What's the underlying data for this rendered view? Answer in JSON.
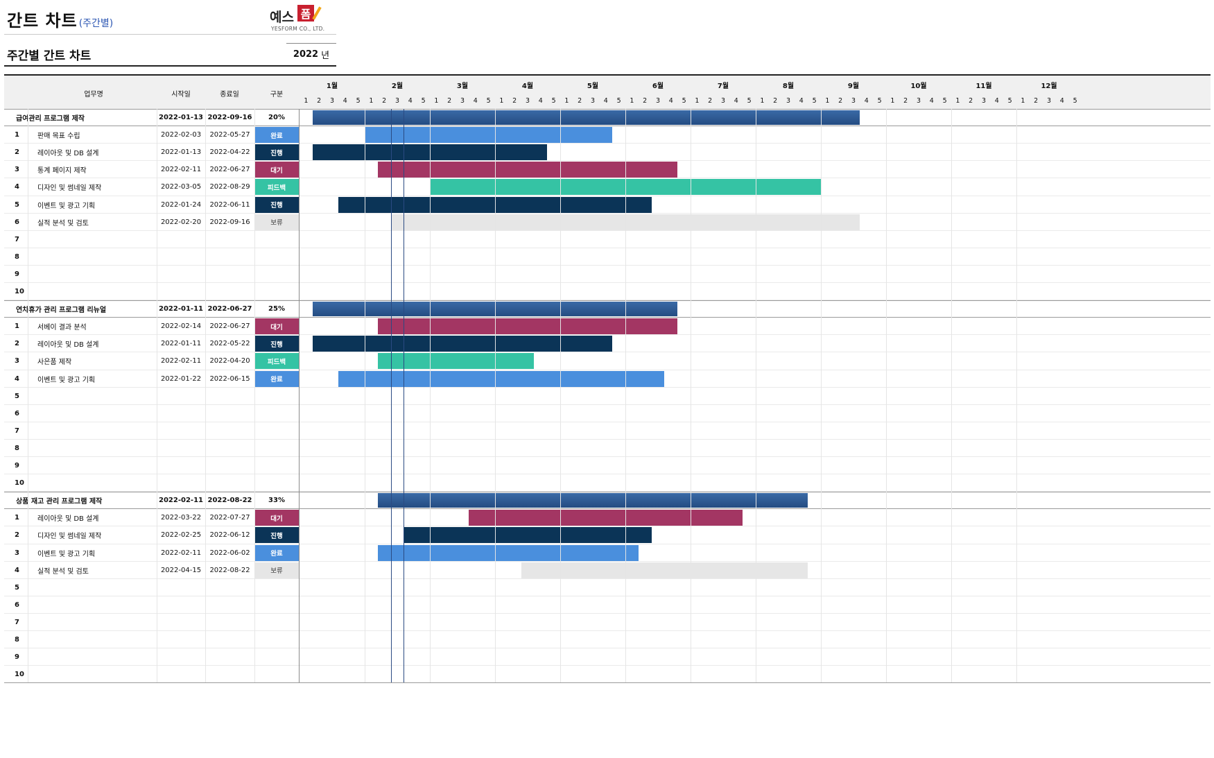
{
  "header": {
    "title": "간트 차트",
    "subtitle": "(주간별)",
    "logo_text": "예스",
    "logo_mark": "폼",
    "logo_sub": "YESFORM CO., LTD."
  },
  "section": {
    "title": "주간별 간트 차트",
    "year": "2022",
    "year_unit": "년"
  },
  "columns": {
    "task": "업무명",
    "start": "시작일",
    "end": "종료일",
    "status": "구분"
  },
  "months": [
    "1월",
    "2월",
    "3월",
    "4월",
    "5월",
    "6월",
    "7월",
    "8월",
    "9월",
    "10월",
    "11월",
    "12월"
  ],
  "weeks": [
    "1",
    "2",
    "3",
    "4",
    "5"
  ],
  "status_colors": {
    "완료": "#4a8fdd",
    "진행": "#0b3457",
    "대기": "#a33663",
    "피드백": "#35c3a4",
    "보류": "#e6e6e6",
    "group": "#2d5a94"
  },
  "chart_data": {
    "type": "table",
    "year": 2022,
    "today": "2022-02-16",
    "groups": [
      {
        "name": "급여관리 프로그램 제작",
        "start": "2022-01-13",
        "end": "2022-09-16",
        "progress": "20%",
        "tasks": [
          {
            "no": "1",
            "name": "판매 목표 수립",
            "start": "2022-02-03",
            "end": "2022-05-27",
            "status": "완료"
          },
          {
            "no": "2",
            "name": "레이아웃 및 DB 설계",
            "start": "2022-01-13",
            "end": "2022-04-22",
            "status": "진행"
          },
          {
            "no": "3",
            "name": "통계 페이지 제작",
            "start": "2022-02-11",
            "end": "2022-06-27",
            "status": "대기"
          },
          {
            "no": "4",
            "name": "디자인 및 썸네일 제작",
            "start": "2022-03-05",
            "end": "2022-08-29",
            "status": "피드백"
          },
          {
            "no": "5",
            "name": "이벤트 및 광고 기획",
            "start": "2022-01-24",
            "end": "2022-06-11",
            "status": "진행"
          },
          {
            "no": "6",
            "name": "실적 분석 및 검토",
            "start": "2022-02-20",
            "end": "2022-09-16",
            "status": "보류"
          },
          {
            "no": "7"
          },
          {
            "no": "8"
          },
          {
            "no": "9"
          },
          {
            "no": "10"
          }
        ]
      },
      {
        "name": "연차휴가 관리 프로그램 리뉴얼",
        "start": "2022-01-11",
        "end": "2022-06-27",
        "progress": "25%",
        "tasks": [
          {
            "no": "1",
            "name": "서베이 결과 분석",
            "start": "2022-02-14",
            "end": "2022-06-27",
            "status": "대기"
          },
          {
            "no": "2",
            "name": "레이아웃 및 DB 설계",
            "start": "2022-01-11",
            "end": "2022-05-22",
            "status": "진행"
          },
          {
            "no": "3",
            "name": "사은품 제작",
            "start": "2022-02-11",
            "end": "2022-04-20",
            "status": "피드백"
          },
          {
            "no": "4",
            "name": "이벤트 및 광고 기획",
            "start": "2022-01-22",
            "end": "2022-06-15",
            "status": "완료"
          },
          {
            "no": "5"
          },
          {
            "no": "6"
          },
          {
            "no": "7"
          },
          {
            "no": "8"
          },
          {
            "no": "9"
          },
          {
            "no": "10"
          }
        ]
      },
      {
        "name": "상품 재고 관리 프로그램 제작",
        "start": "2022-02-11",
        "end": "2022-08-22",
        "progress": "33%",
        "tasks": [
          {
            "no": "1",
            "name": "레이아웃 및 DB 설계",
            "start": "2022-03-22",
            "end": "2022-07-27",
            "status": "대기"
          },
          {
            "no": "2",
            "name": "디자인 및 썸네일 제작",
            "start": "2022-02-25",
            "end": "2022-06-12",
            "status": "진행"
          },
          {
            "no": "3",
            "name": "이벤트 및 광고 기획",
            "start": "2022-02-11",
            "end": "2022-06-02",
            "status": "완료"
          },
          {
            "no": "4",
            "name": "실적 분석 및 검토",
            "start": "2022-04-15",
            "end": "2022-08-22",
            "status": "보류"
          },
          {
            "no": "5"
          },
          {
            "no": "6"
          },
          {
            "no": "7"
          },
          {
            "no": "8"
          },
          {
            "no": "9"
          },
          {
            "no": "10"
          }
        ]
      }
    ]
  }
}
